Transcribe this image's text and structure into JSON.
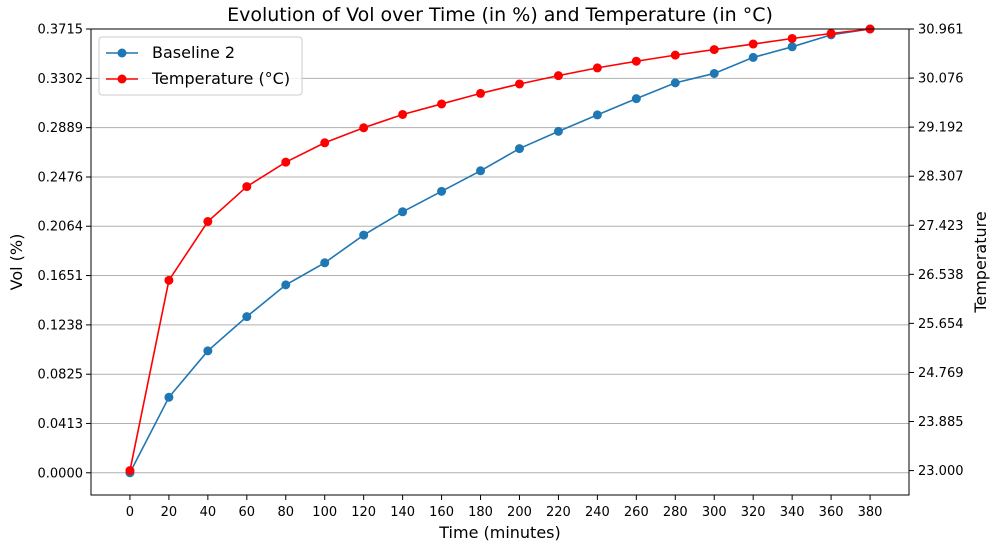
{
  "chart_data": {
    "type": "line",
    "title": "Evolution of Vol over Time (in %) and Temperature (in °C)",
    "xlabel": "Time (minutes)",
    "ylabel": "Vol (%)",
    "y2label": "Temperature",
    "x": [
      0,
      20,
      40,
      60,
      80,
      100,
      120,
      140,
      160,
      180,
      200,
      220,
      240,
      260,
      280,
      300,
      320,
      340,
      360,
      380
    ],
    "xticks": [
      "0",
      "20",
      "40",
      "60",
      "80",
      "100",
      "120",
      "140",
      "160",
      "180",
      "200",
      "220",
      "240",
      "260",
      "280",
      "300",
      "320",
      "340",
      "360",
      "380"
    ],
    "xlim": [
      -20,
      400
    ],
    "ylim": [
      -0.0186,
      0.3715
    ],
    "y2lim": [
      22.56,
      30.961
    ],
    "yticks": [
      "0.0000",
      "0.0413",
      "0.0825",
      "0.1238",
      "0.1651",
      "0.2064",
      "0.2476",
      "0.2889",
      "0.3302",
      "0.3715"
    ],
    "y2ticks": [
      "23.000",
      "23.885",
      "24.769",
      "25.654",
      "26.538",
      "27.423",
      "28.307",
      "29.192",
      "30.076",
      "30.961"
    ],
    "grid": "horizontal",
    "legend_position": "top-left",
    "series": [
      {
        "name": "Baseline 2",
        "axis": "left",
        "color": "#1f77b4",
        "values": [
          0.0,
          0.0632,
          0.1021,
          0.1307,
          0.1573,
          0.1758,
          0.199,
          0.2185,
          0.2356,
          0.2528,
          0.2714,
          0.2858,
          0.2996,
          0.3132,
          0.3264,
          0.3343,
          0.3477,
          0.3566,
          0.3666,
          0.3715
        ]
      },
      {
        "name": "Temperature (°C)",
        "axis": "right",
        "color": "#ff0000",
        "values": [
          23.0,
          26.43,
          27.49,
          28.12,
          28.56,
          28.91,
          29.18,
          29.42,
          29.61,
          29.8,
          29.97,
          30.12,
          30.26,
          30.38,
          30.49,
          30.59,
          30.69,
          30.79,
          30.88,
          30.961
        ]
      }
    ]
  }
}
